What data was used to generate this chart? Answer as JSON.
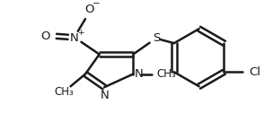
{
  "bg_color": "#ffffff",
  "line_color": "#1a1a1a",
  "line_width": 1.8,
  "font_size": 9.5,
  "charge_font_size": 6.5,
  "figsize": [
    3.04,
    1.45
  ],
  "dpi": 100,
  "xlim": [
    0,
    304
  ],
  "ylim": [
    0,
    145
  ]
}
